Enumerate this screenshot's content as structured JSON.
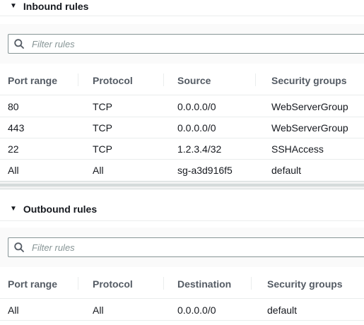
{
  "inbound": {
    "title": "Inbound rules",
    "filter_placeholder": "Filter rules",
    "columns": [
      "Port range",
      "Protocol",
      "Source",
      "Security groups"
    ],
    "rows": [
      [
        "80",
        "TCP",
        "0.0.0.0/0",
        "WebServerGroup"
      ],
      [
        "443",
        "TCP",
        "0.0.0.0/0",
        "WebServerGroup"
      ],
      [
        "22",
        "TCP",
        "1.2.3.4/32",
        "SSHAccess"
      ],
      [
        "All",
        "All",
        "sg-a3d916f5",
        "default"
      ]
    ]
  },
  "outbound": {
    "title": "Outbound rules",
    "filter_placeholder": "Filter rules",
    "columns": [
      "Port range",
      "Protocol",
      "Destination",
      "Security groups"
    ],
    "rows": [
      [
        "All",
        "All",
        "0.0.0.0/0",
        "default"
      ]
    ]
  },
  "icons": {
    "caret": "caret-down-icon",
    "search": "search-icon"
  },
  "colors": {
    "text": "#16191f",
    "header_text": "#545b64",
    "placeholder": "#879596",
    "divider": "#eaeded"
  }
}
